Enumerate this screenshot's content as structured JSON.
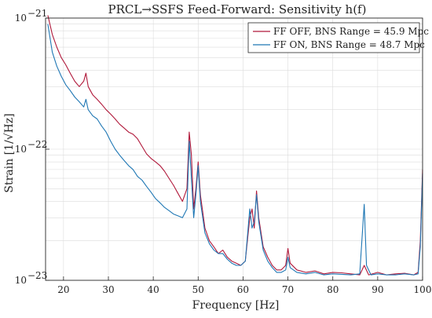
{
  "chart_data": {
    "type": "line",
    "title": "PRCL→SSFS Feed-Forward: Sensitivity h(f)",
    "xlabel": "Frequency [Hz]",
    "ylabel": "Strain [1/√Hz]",
    "xlim": [
      16,
      100
    ],
    "ylim": [
      1e-23,
      1e-21
    ],
    "yscale": "log",
    "grid": true,
    "legend_position": "top-right",
    "x_ticks": [
      20,
      30,
      40,
      50,
      60,
      70,
      80,
      90,
      100
    ],
    "x_tick_labels": [
      "20",
      "30",
      "40",
      "50",
      "60",
      "70",
      "80",
      "90",
      "100"
    ],
    "y_ticks": [
      1e-23,
      1e-22,
      1e-21
    ],
    "y_tick_labels": [
      {
        "base": "10",
        "exp": "−23"
      },
      {
        "base": "10",
        "exp": "−22"
      },
      {
        "base": "10",
        "exp": "−21"
      }
    ],
    "series": [
      {
        "name": "FF OFF, BNS Range = 45.9 Mpc",
        "color": "#b0183a",
        "points": [
          [
            16.5,
            1.05e-21
          ],
          [
            17.5,
            7.5e-22
          ],
          [
            18.5,
            6e-22
          ],
          [
            19.5,
            5e-22
          ],
          [
            20.5,
            4.4e-22
          ],
          [
            21.5,
            3.8e-22
          ],
          [
            22.5,
            3.3e-22
          ],
          [
            23.5,
            3e-22
          ],
          [
            24.5,
            3.3e-22
          ],
          [
            25.0,
            3.8e-22
          ],
          [
            25.5,
            3e-22
          ],
          [
            26.5,
            2.6e-22
          ],
          [
            27.5,
            2.4e-22
          ],
          [
            28.5,
            2.2e-22
          ],
          [
            29.5,
            2e-22
          ],
          [
            30.5,
            1.85e-22
          ],
          [
            31.5,
            1.7e-22
          ],
          [
            32.5,
            1.55e-22
          ],
          [
            33.5,
            1.45e-22
          ],
          [
            34.5,
            1.35e-22
          ],
          [
            35.5,
            1.3e-22
          ],
          [
            36.5,
            1.2e-22
          ],
          [
            37.5,
            1.05e-22
          ],
          [
            38.5,
            9.2e-23
          ],
          [
            39.5,
            8.5e-23
          ],
          [
            40.5,
            8e-23
          ],
          [
            41.5,
            7.5e-23
          ],
          [
            42.5,
            6.8e-23
          ],
          [
            43.5,
            6e-23
          ],
          [
            44.5,
            5.3e-23
          ],
          [
            45.5,
            4.6e-23
          ],
          [
            46.5,
            4e-23
          ],
          [
            47.5,
            5e-23
          ],
          [
            48.0,
            1.35e-22
          ],
          [
            48.5,
            9e-23
          ],
          [
            49.0,
            3.5e-23
          ],
          [
            49.5,
            5e-23
          ],
          [
            50.0,
            8e-23
          ],
          [
            50.5,
            4.5e-23
          ],
          [
            51.5,
            2.5e-23
          ],
          [
            52.5,
            2e-23
          ],
          [
            53.5,
            1.8e-23
          ],
          [
            54.5,
            1.6e-23
          ],
          [
            55.5,
            1.7e-23
          ],
          [
            56.5,
            1.5e-23
          ],
          [
            57.5,
            1.4e-23
          ],
          [
            58.5,
            1.35e-23
          ],
          [
            59.5,
            1.3e-23
          ],
          [
            60.5,
            1.4e-23
          ],
          [
            61.5,
            3e-23
          ],
          [
            62.0,
            3.5e-23
          ],
          [
            62.5,
            2.5e-23
          ],
          [
            63.0,
            4.8e-23
          ],
          [
            63.5,
            3e-23
          ],
          [
            64.5,
            1.8e-23
          ],
          [
            65.5,
            1.5e-23
          ],
          [
            66.5,
            1.3e-23
          ],
          [
            67.5,
            1.2e-23
          ],
          [
            68.5,
            1.2e-23
          ],
          [
            69.5,
            1.3e-23
          ],
          [
            70.0,
            1.75e-23
          ],
          [
            70.5,
            1.35e-23
          ],
          [
            72.0,
            1.2e-23
          ],
          [
            74.0,
            1.15e-23
          ],
          [
            76.0,
            1.18e-23
          ],
          [
            78.0,
            1.12e-23
          ],
          [
            80.0,
            1.15e-23
          ],
          [
            82.0,
            1.14e-23
          ],
          [
            84.0,
            1.12e-23
          ],
          [
            86.0,
            1.1e-23
          ],
          [
            87.0,
            1.3e-23
          ],
          [
            88.0,
            1.1e-23
          ],
          [
            90.0,
            1.15e-23
          ],
          [
            92.0,
            1.1e-23
          ],
          [
            94.0,
            1.12e-23
          ],
          [
            96.0,
            1.13e-23
          ],
          [
            98.0,
            1.1e-23
          ],
          [
            99.0,
            1.15e-23
          ],
          [
            99.5,
            2e-23
          ],
          [
            100.0,
            7e-23
          ]
        ]
      },
      {
        "name": "FF ON, BNS Range = 48.7 Mpc",
        "color": "#1f77b4",
        "points": [
          [
            16.5,
            9e-22
          ],
          [
            17.5,
            5.5e-22
          ],
          [
            18.5,
            4.3e-22
          ],
          [
            19.5,
            3.6e-22
          ],
          [
            20.5,
            3.1e-22
          ],
          [
            21.5,
            2.8e-22
          ],
          [
            22.5,
            2.5e-22
          ],
          [
            23.5,
            2.3e-22
          ],
          [
            24.5,
            2.1e-22
          ],
          [
            25.0,
            2.4e-22
          ],
          [
            25.5,
            2e-22
          ],
          [
            26.5,
            1.8e-22
          ],
          [
            27.5,
            1.7e-22
          ],
          [
            28.5,
            1.5e-22
          ],
          [
            29.5,
            1.35e-22
          ],
          [
            30.5,
            1.15e-22
          ],
          [
            31.5,
            1e-22
          ],
          [
            32.5,
            9e-23
          ],
          [
            33.5,
            8.2e-23
          ],
          [
            34.5,
            7.5e-23
          ],
          [
            35.5,
            7e-23
          ],
          [
            36.5,
            6.2e-23
          ],
          [
            37.5,
            5.8e-23
          ],
          [
            38.5,
            5.2e-23
          ],
          [
            39.5,
            4.7e-23
          ],
          [
            40.5,
            4.2e-23
          ],
          [
            41.5,
            3.9e-23
          ],
          [
            42.5,
            3.6e-23
          ],
          [
            43.5,
            3.4e-23
          ],
          [
            44.5,
            3.2e-23
          ],
          [
            45.5,
            3.1e-23
          ],
          [
            46.5,
            3e-23
          ],
          [
            47.5,
            3.5e-23
          ],
          [
            48.0,
            1.15e-22
          ],
          [
            48.5,
            6e-23
          ],
          [
            49.0,
            3e-23
          ],
          [
            49.5,
            4.5e-23
          ],
          [
            50.0,
            7.5e-23
          ],
          [
            50.5,
            4e-23
          ],
          [
            51.5,
            2.3e-23
          ],
          [
            52.5,
            1.9e-23
          ],
          [
            53.5,
            1.7e-23
          ],
          [
            54.5,
            1.6e-23
          ],
          [
            55.5,
            1.6e-23
          ],
          [
            56.5,
            1.45e-23
          ],
          [
            57.5,
            1.35e-23
          ],
          [
            58.5,
            1.3e-23
          ],
          [
            59.5,
            1.3e-23
          ],
          [
            60.5,
            1.4e-23
          ],
          [
            61.5,
            3.5e-23
          ],
          [
            62.0,
            2.5e-23
          ],
          [
            62.5,
            2.8e-23
          ],
          [
            63.0,
            4.5e-23
          ],
          [
            63.5,
            2.8e-23
          ],
          [
            64.5,
            1.7e-23
          ],
          [
            65.5,
            1.4e-23
          ],
          [
            66.5,
            1.25e-23
          ],
          [
            67.5,
            1.15e-23
          ],
          [
            68.5,
            1.15e-23
          ],
          [
            69.5,
            1.2e-23
          ],
          [
            70.0,
            1.5e-23
          ],
          [
            70.5,
            1.25e-23
          ],
          [
            72.0,
            1.15e-23
          ],
          [
            74.0,
            1.12e-23
          ],
          [
            76.0,
            1.15e-23
          ],
          [
            78.0,
            1.1e-23
          ],
          [
            80.0,
            1.12e-23
          ],
          [
            82.0,
            1.11e-23
          ],
          [
            84.0,
            1.1e-23
          ],
          [
            86.0,
            1.12e-23
          ],
          [
            87.0,
            3.8e-23
          ],
          [
            87.5,
            1.3e-23
          ],
          [
            88.5,
            1.1e-23
          ],
          [
            90.0,
            1.12e-23
          ],
          [
            92.0,
            1.1e-23
          ],
          [
            94.0,
            1.1e-23
          ],
          [
            96.0,
            1.12e-23
          ],
          [
            98.0,
            1.1e-23
          ],
          [
            99.0,
            1.12e-23
          ],
          [
            99.5,
            1.8e-23
          ],
          [
            100.0,
            6.5e-23
          ]
        ]
      }
    ]
  }
}
